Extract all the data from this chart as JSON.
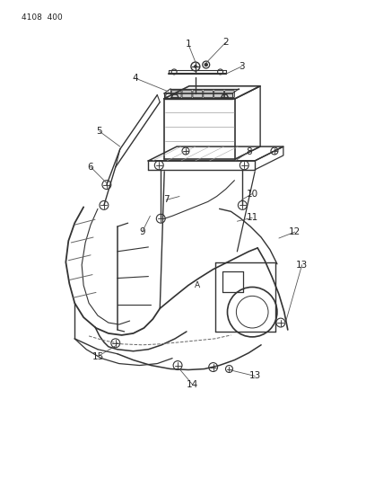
{
  "page_label": "4108  400",
  "background_color": "#ffffff",
  "line_color": "#333333",
  "text_color": "#222222",
  "figsize": [
    4.08,
    5.33
  ],
  "dpi": 100
}
